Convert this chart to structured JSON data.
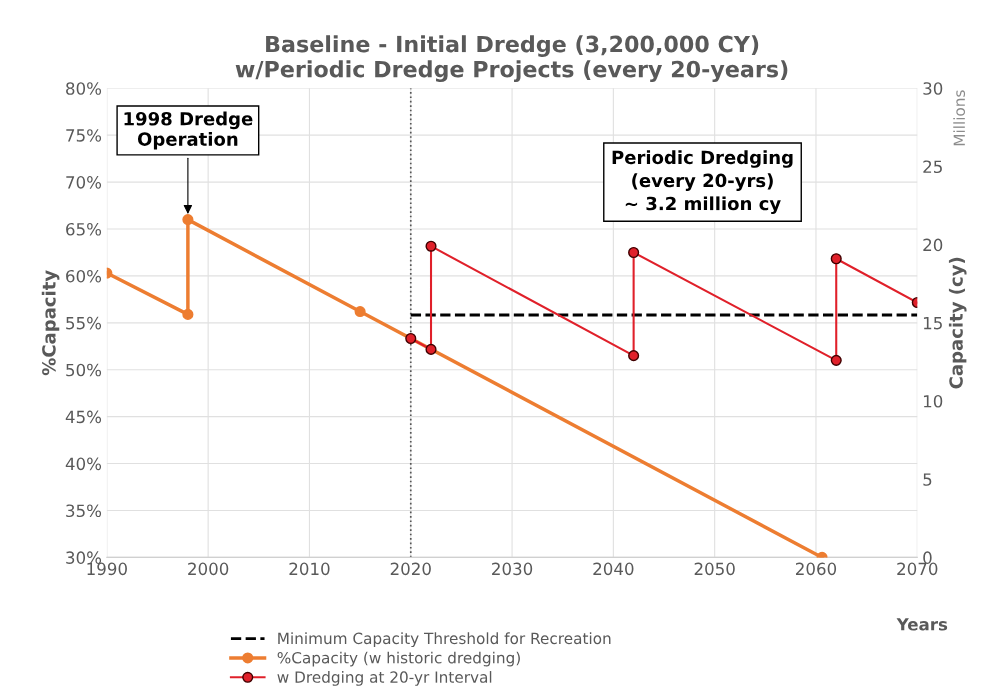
{
  "chart_data": {
    "type": "line",
    "title": "Baseline - Initial Dredge (3,200,000 CY)\nw/Periodic Dredge Projects (every 20-years)",
    "xlabel": "Years",
    "ylabel": "%Capacity",
    "y2label": "Capacity (cy)",
    "xlim": [
      1990,
      2070
    ],
    "xticks": [
      1990,
      2000,
      2010,
      2020,
      2030,
      2040,
      2050,
      2060,
      2070
    ],
    "ylim": [
      30,
      80
    ],
    "yticks": [
      {
        "value": 30,
        "label": "30%"
      },
      {
        "value": 35,
        "label": "35%"
      },
      {
        "value": 40,
        "label": "40%"
      },
      {
        "value": 45,
        "label": "45%"
      },
      {
        "value": 50,
        "label": "50%"
      },
      {
        "value": 55,
        "label": "55%"
      },
      {
        "value": 60,
        "label": "60%"
      },
      {
        "value": 65,
        "label": "65%"
      },
      {
        "value": 70,
        "label": "70%"
      },
      {
        "value": 75,
        "label": "75%"
      },
      {
        "value": 80,
        "label": "80%"
      }
    ],
    "y2lim": [
      0,
      30
    ],
    "y2ticks": [
      0,
      5,
      10,
      15,
      20,
      25,
      30
    ],
    "grid": true,
    "legend": "bottom",
    "series": [
      {
        "name": "Minimum Capacity Threshold for Recreation",
        "color": "#000000",
        "axis": "y2",
        "line_style": "dashed",
        "marker": "none",
        "x": [
          2020,
          2070
        ],
        "values": [
          15.5,
          15.5
        ]
      },
      {
        "name": "%Capacity (w historic dredging)",
        "color": "#ed7d31",
        "marker": "circle",
        "x": [
          1990,
          1998,
          1998,
          2015,
          2060.6
        ],
        "values": [
          60.3,
          55.9,
          66.0,
          56.2,
          30
        ]
      },
      {
        "name": "w Dredging at 20-yr Interval",
        "color": "#e0202a",
        "axis": "y2",
        "marker": "circle",
        "x": [
          2020,
          2022,
          2022,
          2042,
          2042,
          2062,
          2062,
          2070
        ],
        "values": [
          14.0,
          13.3,
          19.9,
          12.9,
          19.5,
          12.6,
          19.1,
          16.3
        ]
      }
    ],
    "ref_lines": [
      {
        "axis": "x",
        "value": 2020,
        "color": "#555555",
        "line_style": "dotted"
      }
    ],
    "annotations": [
      {
        "text": "1998 Dredge\nOperation",
        "x": 1998,
        "y": 66.0
      },
      "Periodic Dredging\n(every 20-yrs)\n~ 3.2 million cy",
      "Millions"
    ]
  }
}
